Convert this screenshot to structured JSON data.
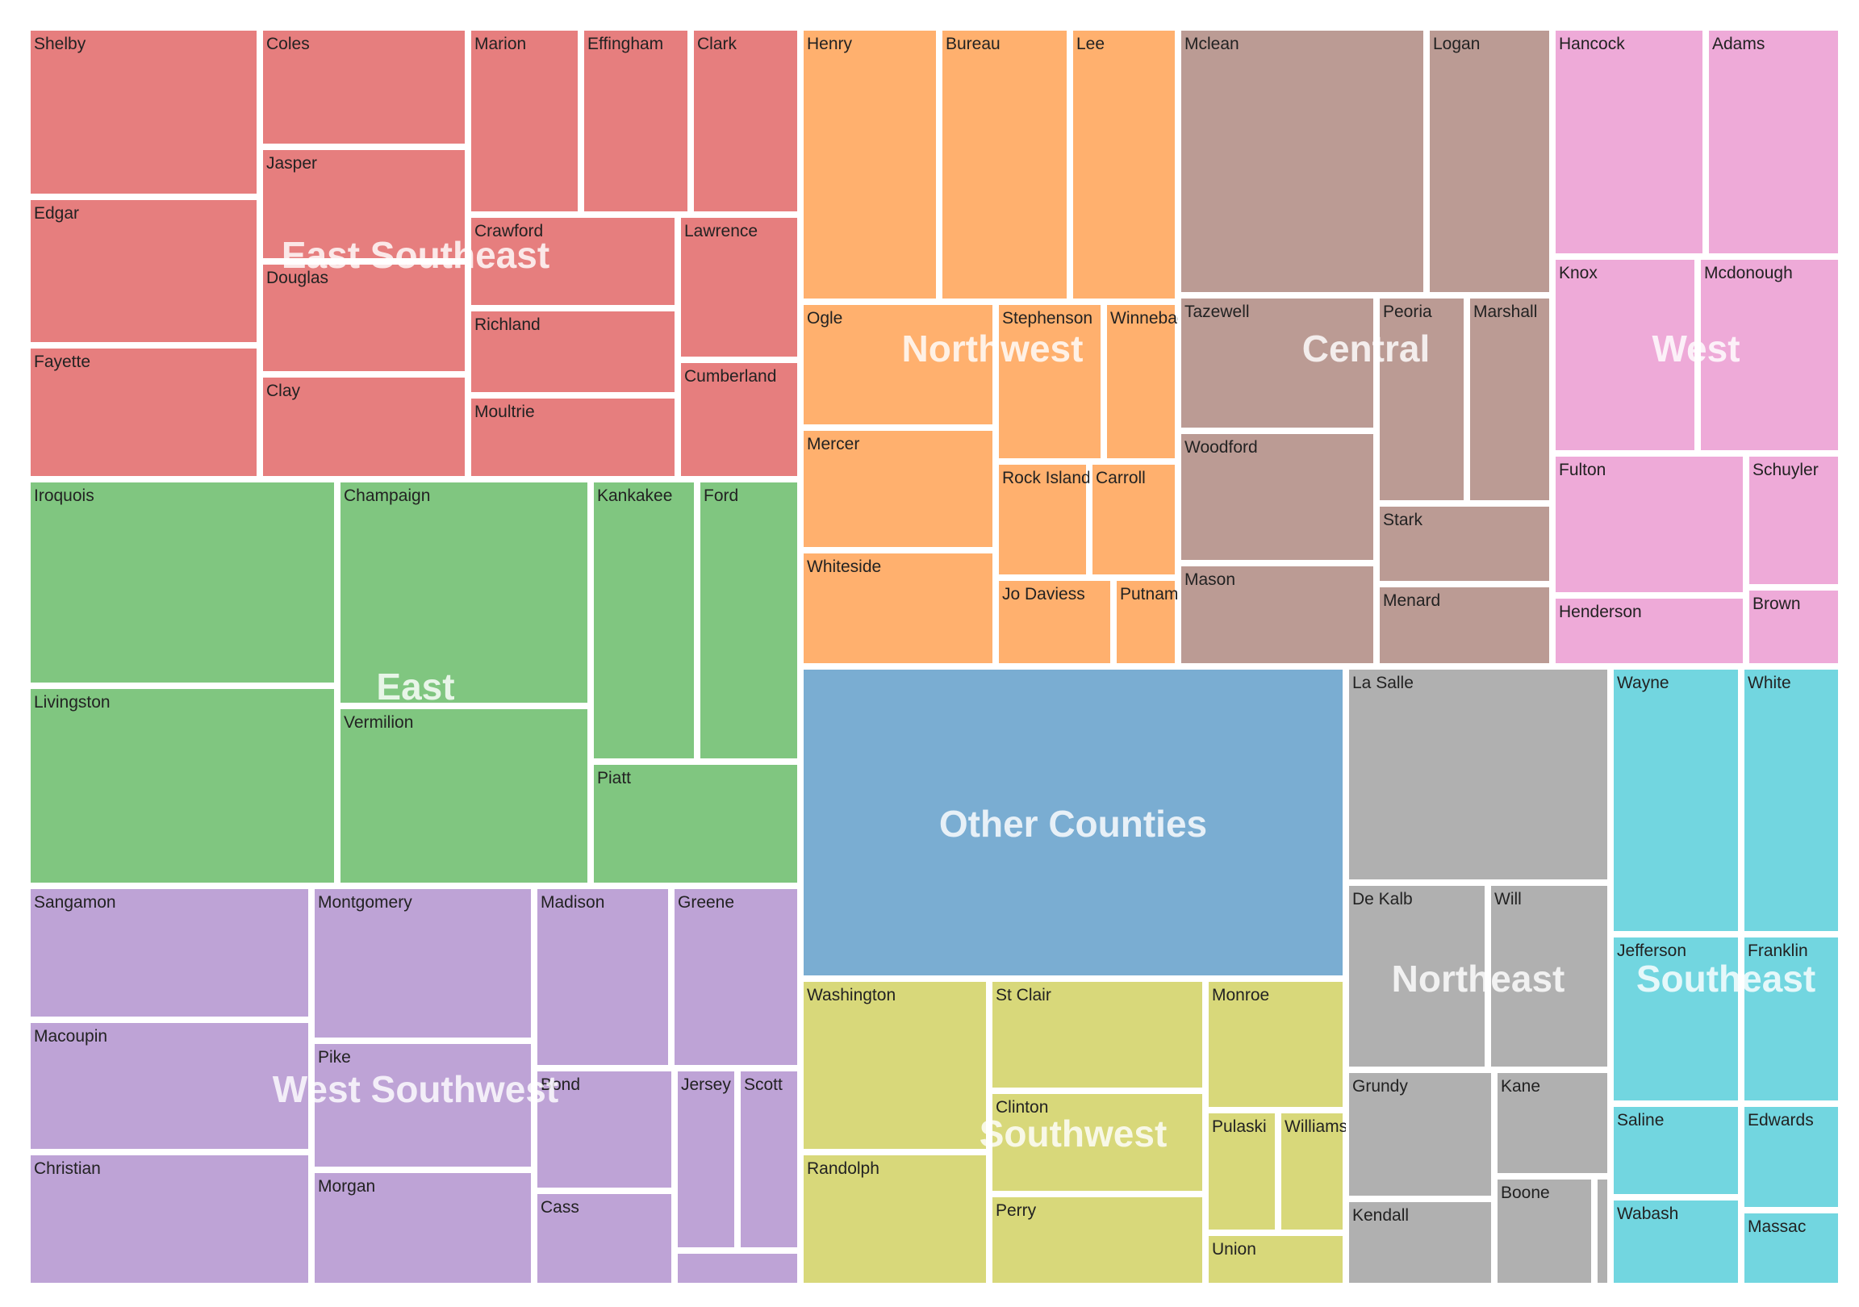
{
  "chart_data": {
    "type": "treemap",
    "title": "",
    "groups": [
      {
        "name": "East Southeast",
        "color": "#E67E7E",
        "counties": [
          "Shelby",
          "Edgar",
          "Fayette",
          "Coles",
          "Jasper",
          "Douglas",
          "Clay",
          "Marion",
          "Effingham",
          "Clark",
          "Crawford",
          "Richland",
          "Moultrie",
          "Lawrence",
          "Cumberland"
        ]
      },
      {
        "name": "East",
        "color": "#80C680",
        "counties": [
          "Iroquois",
          "Livingston",
          "Champaign",
          "Vermilion",
          "Kankakee",
          "Ford",
          "Piatt"
        ]
      },
      {
        "name": "West Southwest",
        "color": "#BEA3D6",
        "counties": [
          "Sangamon",
          "Macoupin",
          "Christian",
          "Montgomery",
          "Pike",
          "Morgan",
          "Madison",
          "Greene",
          "Bond",
          "Cass",
          "Jersey",
          "Scott",
          ""
        ]
      },
      {
        "name": "Northwest",
        "color": "#FFB06E",
        "counties": [
          "Henry",
          "Bureau",
          "Lee",
          "Ogle",
          "Mercer",
          "Whiteside",
          "Stephenson",
          "Winnebago",
          "Rock Island",
          "Carroll",
          "Jo Daviess",
          "Putnam"
        ]
      },
      {
        "name": "Central",
        "color": "#BB9B94",
        "counties": [
          "Mclean",
          "Logan",
          "Tazewell",
          "Woodford",
          "Mason",
          "Peoria",
          "Marshall",
          "Stark",
          "Menard"
        ]
      },
      {
        "name": "West",
        "color": "#EEAAD8",
        "counties": [
          "Hancock",
          "Adams",
          "Knox",
          "Mcdonough",
          "Fulton",
          "Schuyler",
          "Henderson",
          "Brown"
        ]
      },
      {
        "name": "Other Counties",
        "color": "#7AADD2",
        "counties": [
          ""
        ]
      },
      {
        "name": "Southwest",
        "color": "#D8D87A",
        "counties": [
          "Washington",
          "Randolph",
          "St Clair",
          "Clinton",
          "Perry",
          "Monroe",
          "Pulaski",
          "Williamson",
          "Union"
        ]
      },
      {
        "name": "Northeast",
        "color": "#B0B0B0",
        "counties": [
          "La Salle",
          "De Kalb",
          "Will",
          "Grundy",
          "Kane",
          "Kendall",
          "Boone",
          ""
        ]
      },
      {
        "name": "Southeast",
        "color": "#72D6E0",
        "counties": [
          "Wayne",
          "White",
          "Jefferson",
          "Franklin",
          "Saline",
          "Edwards",
          "Wabash",
          "Massac"
        ]
      }
    ]
  }
}
